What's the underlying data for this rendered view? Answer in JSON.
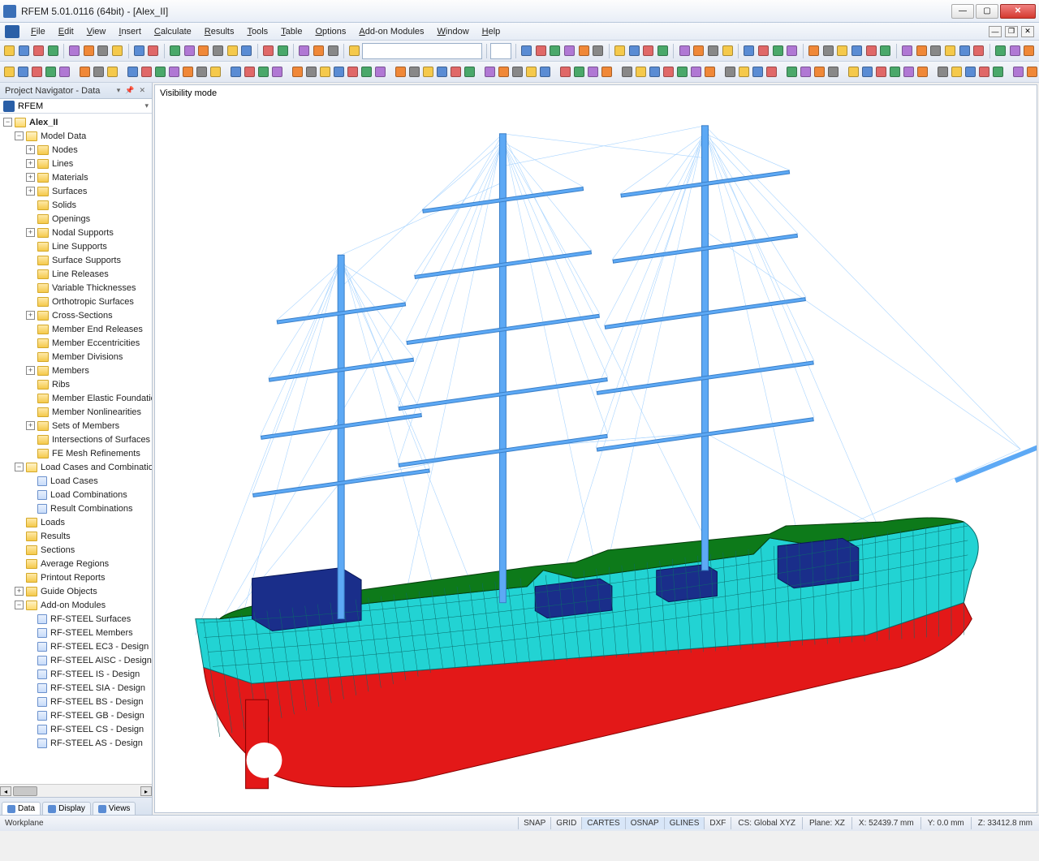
{
  "title": "RFEM 5.01.0116 (64bit) - [Alex_II]",
  "menu": [
    "File",
    "Edit",
    "View",
    "Insert",
    "Calculate",
    "Results",
    "Tools",
    "Table",
    "Options",
    "Add-on Modules",
    "Window",
    "Help"
  ],
  "navigator": {
    "title": "Project Navigator - Data",
    "root": "RFEM",
    "project": "Alex_II",
    "modelData": "Model Data",
    "loadCases": "Load Cases and Combinations",
    "guideObjects": "Guide Objects",
    "addOn": "Add-on Modules",
    "modelItems": [
      {
        "label": "Nodes",
        "exp": "+"
      },
      {
        "label": "Lines",
        "exp": "+"
      },
      {
        "label": "Materials",
        "exp": "+"
      },
      {
        "label": "Surfaces",
        "exp": "+"
      },
      {
        "label": "Solids"
      },
      {
        "label": "Openings"
      },
      {
        "label": "Nodal Supports",
        "exp": "+"
      },
      {
        "label": "Line Supports"
      },
      {
        "label": "Surface Supports"
      },
      {
        "label": "Line Releases"
      },
      {
        "label": "Variable Thicknesses"
      },
      {
        "label": "Orthotropic Surfaces"
      },
      {
        "label": "Cross-Sections",
        "exp": "+"
      },
      {
        "label": "Member End Releases"
      },
      {
        "label": "Member Eccentricities"
      },
      {
        "label": "Member Divisions"
      },
      {
        "label": "Members",
        "exp": "+"
      },
      {
        "label": "Ribs"
      },
      {
        "label": "Member Elastic Foundations"
      },
      {
        "label": "Member Nonlinearities"
      },
      {
        "label": "Sets of Members",
        "exp": "+"
      },
      {
        "label": "Intersections of Surfaces"
      },
      {
        "label": "FE Mesh Refinements"
      }
    ],
    "loadItems": [
      {
        "label": "Load Cases",
        "icon": "leaf"
      },
      {
        "label": "Load Combinations",
        "icon": "leaf"
      },
      {
        "label": "Result Combinations",
        "icon": "leaf"
      }
    ],
    "otherItems": [
      {
        "label": "Loads"
      },
      {
        "label": "Results"
      },
      {
        "label": "Sections"
      },
      {
        "label": "Average Regions"
      },
      {
        "label": "Printout Reports"
      }
    ],
    "addOnItems": [
      {
        "label": "RF-STEEL Surfaces"
      },
      {
        "label": "RF-STEEL Members"
      },
      {
        "label": "RF-STEEL EC3 - Design"
      },
      {
        "label": "RF-STEEL AISC - Design"
      },
      {
        "label": "RF-STEEL IS - Design"
      },
      {
        "label": "RF-STEEL SIA - Design"
      },
      {
        "label": "RF-STEEL BS - Design"
      },
      {
        "label": "RF-STEEL GB - Design"
      },
      {
        "label": "RF-STEEL CS - Design"
      },
      {
        "label": "RF-STEEL AS - Design"
      }
    ],
    "tabs": [
      {
        "label": "Data",
        "active": true
      },
      {
        "label": "Display"
      },
      {
        "label": "Views"
      }
    ]
  },
  "viewport": {
    "label": "Visibility mode"
  },
  "colors": {
    "hull_upper": "#22d3d3",
    "hull_lower": "#e31818",
    "deck": "#0d7a1a",
    "cabin": "#1a2e8a",
    "mast": "#5da9f5",
    "rigging": "#a8d4ff",
    "mesh": "#0a6a6a"
  },
  "status": {
    "left": "Workplane",
    "toggles": [
      {
        "label": "SNAP"
      },
      {
        "label": "GRID"
      },
      {
        "label": "CARTES",
        "active": true
      },
      {
        "label": "OSNAP",
        "active": true
      },
      {
        "label": "GLINES",
        "active": true
      },
      {
        "label": "DXF"
      }
    ],
    "cs": "CS: Global XYZ",
    "plane": "Plane: XZ",
    "x": "X:   52439.7 mm",
    "y": "Y: 0.0 mm",
    "z": "Z:   33412.8 mm"
  }
}
